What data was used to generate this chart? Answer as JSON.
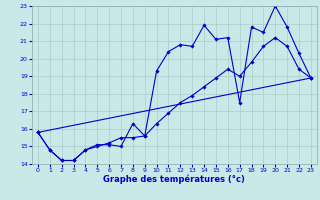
{
  "title": "Graphe des températures (°c)",
  "xlim": [
    -0.5,
    23.5
  ],
  "ylim": [
    14,
    23
  ],
  "xticks": [
    0,
    1,
    2,
    3,
    4,
    5,
    6,
    7,
    8,
    9,
    10,
    11,
    12,
    13,
    14,
    15,
    16,
    17,
    18,
    19,
    20,
    21,
    22,
    23
  ],
  "yticks": [
    14,
    15,
    16,
    17,
    18,
    19,
    20,
    21,
    22,
    23
  ],
  "background_color": "#cbe8e8",
  "grid_color": "#aacccc",
  "line_color": "#0000cc",
  "line1_x": [
    0,
    1,
    2,
    3,
    4,
    5,
    6,
    7,
    8,
    9,
    10,
    11,
    12,
    13,
    14,
    15,
    16,
    17,
    18,
    19,
    20,
    21,
    22,
    23
  ],
  "line1_y": [
    15.8,
    14.8,
    14.2,
    14.2,
    14.8,
    15.1,
    15.1,
    15.0,
    16.3,
    15.6,
    19.3,
    20.4,
    20.8,
    20.7,
    21.9,
    21.1,
    21.2,
    17.5,
    21.8,
    21.5,
    23.0,
    21.8,
    20.3,
    18.9
  ],
  "line2_x": [
    0,
    1,
    2,
    3,
    4,
    5,
    6,
    7,
    8,
    9,
    10,
    11,
    12,
    13,
    14,
    15,
    16,
    17,
    18,
    19,
    20,
    21,
    22,
    23
  ],
  "line2_y": [
    15.8,
    14.8,
    14.2,
    14.2,
    14.8,
    15.0,
    15.2,
    15.5,
    15.5,
    15.6,
    16.3,
    16.9,
    17.5,
    17.9,
    18.4,
    18.9,
    19.4,
    19.0,
    19.8,
    20.7,
    21.2,
    20.7,
    19.4,
    18.9
  ],
  "line3_x": [
    0,
    23
  ],
  "line3_y": [
    15.8,
    18.9
  ],
  "marker": "D",
  "markersize": 1.8,
  "linewidth": 0.8,
  "xlabel_fontsize": 6.0,
  "tick_fontsize": 4.5
}
